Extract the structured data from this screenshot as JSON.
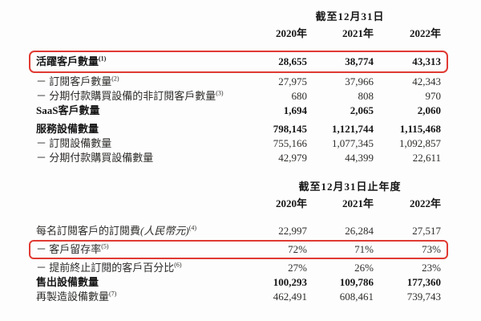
{
  "page": {
    "background": "#fdfdfd",
    "text_color": "#2e2d2b",
    "bold_text_color": "#161616",
    "highlight_border_color": "#e03a33"
  },
  "tables": [
    {
      "period_header": "截至12月31日",
      "columns": [
        "2020年",
        "2021年",
        "2022年"
      ],
      "rows": [
        {
          "label": "活躍客戶數量",
          "sup": "(1)",
          "values": [
            "28,655",
            "38,774",
            "43,313"
          ],
          "bold": true,
          "highlight": true
        },
        {
          "label": "－ 訂閱客戶數量",
          "sup": "(2)",
          "values": [
            "27,975",
            "37,966",
            "42,343"
          ]
        },
        {
          "label": "－ 分期付款購買設備的非訂閱客戶數量",
          "sup": "(3)",
          "values": [
            "680",
            "808",
            "970"
          ]
        },
        {
          "label": "SaaS客戶數量",
          "sup": "",
          "values": [
            "1,694",
            "2,065",
            "2,060"
          ],
          "bold": true
        },
        {
          "label": "服務設備數量",
          "sup": "",
          "values": [
            "798,145",
            "1,121,744",
            "1,115,468"
          ],
          "bold": true,
          "gap_top": true
        },
        {
          "label": "－ 訂閱設備數量",
          "sup": "",
          "values": [
            "755,166",
            "1,077,345",
            "1,092,857"
          ]
        },
        {
          "label": "－ 分期付款購買設備數量",
          "sup": "",
          "values": [
            "42,979",
            "44,399",
            "22,611"
          ]
        }
      ]
    },
    {
      "period_header": "截至12月31日止年度",
      "columns": [
        "2020年",
        "2021年",
        "2022年"
      ],
      "rows": [
        {
          "label": "每名訂閱客戶的訂閱費",
          "label_italic": "(人民幣元)",
          "sup": "(4)",
          "values": [
            "22,997",
            "26,284",
            "27,517"
          ]
        },
        {
          "label": "－ 客戶留存率",
          "sup": "(5)",
          "values": [
            "72%",
            "71%",
            "73%"
          ],
          "highlight": true
        },
        {
          "label": "－ 提前終止訂閱的客戶百分比",
          "sup": "(6)",
          "values": [
            "27%",
            "26%",
            "23%"
          ]
        },
        {
          "label": "售出設備數量",
          "sup": "",
          "values": [
            "100,293",
            "109,786",
            "177,360"
          ],
          "bold": true
        },
        {
          "label": "再製造設備數量",
          "sup": "(7)",
          "values": [
            "462,491",
            "608,461",
            "739,743"
          ]
        }
      ]
    }
  ]
}
